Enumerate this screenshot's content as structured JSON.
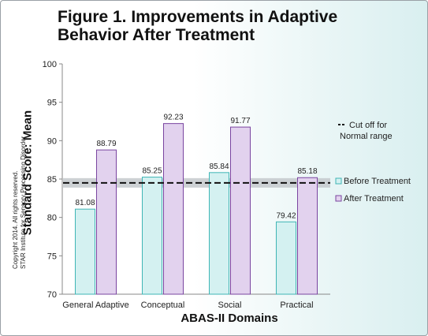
{
  "title": "Figure 1. Improvements in Adaptive Behavior After Treatment",
  "copyright_line1": "Copyright 2014. All rights reserved.",
  "copyright_line2": "STAR Institute for Sensory Processing Disorder",
  "colors": {
    "before_fill": "#d4f1f1",
    "before_stroke": "#3fb5b5",
    "after_fill": "#e2d2ee",
    "after_stroke": "#7a45a0",
    "band": "#c4c9cc"
  },
  "chart_data": {
    "type": "bar",
    "title": "Figure 1. Improvements in Adaptive Behavior After Treatment",
    "xlabel": "ABAS-II Domains",
    "ylabel": "Standard Score: Mean",
    "ylim": [
      70,
      100
    ],
    "yticks": [
      70,
      75,
      80,
      85,
      90,
      95,
      100
    ],
    "categories": [
      "General Adaptive",
      "Conceptual",
      "Social",
      "Practical"
    ],
    "series": [
      {
        "name": "Before Treatment",
        "values": [
          81.08,
          85.25,
          85.84,
          79.42
        ],
        "labels": [
          "81.08",
          "85.25",
          "85.84",
          "79.42"
        ]
      },
      {
        "name": "After Treatment",
        "values": [
          88.79,
          92.23,
          91.77,
          85.18
        ],
        "labels": [
          "88.79",
          "92.23",
          "91.77",
          "85.18"
        ]
      }
    ],
    "cutoff": {
      "value": 84.5,
      "label_line1": "Cut off for",
      "label_line2": "Normal range"
    },
    "grid": false,
    "legend": "right"
  }
}
